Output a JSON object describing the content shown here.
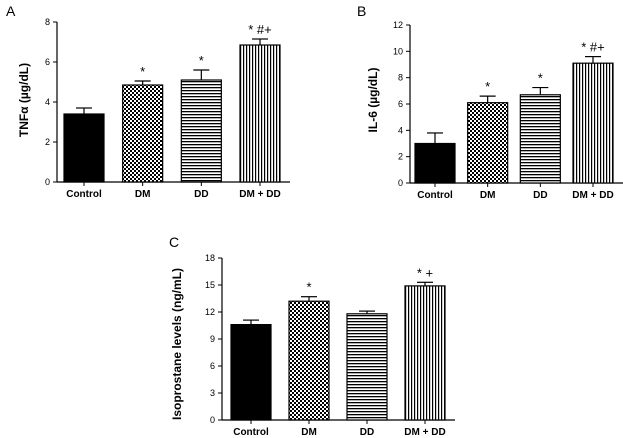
{
  "chart_data": [
    {
      "type": "bar",
      "panel": "A",
      "ylabel": "TNFα  (µg/dL)",
      "categories": [
        "Control",
        "DM",
        "DD",
        "DM + DD"
      ],
      "values": [
        3.4,
        4.85,
        5.1,
        6.85
      ],
      "errors": [
        0.3,
        0.2,
        0.5,
        0.3
      ],
      "annotations": [
        "",
        "*",
        "*",
        "* #+"
      ],
      "ylim": [
        0,
        8
      ],
      "yticks": [
        0,
        2,
        4,
        6,
        8
      ],
      "patterns": [
        "solid",
        "checker",
        "hlines",
        "vlines"
      ]
    },
    {
      "type": "bar",
      "panel": "B",
      "ylabel": "IL-6 (µg/dL)",
      "categories": [
        "Control",
        "DM",
        "DD",
        "DM + DD"
      ],
      "values": [
        3.0,
        6.1,
        6.7,
        9.1
      ],
      "errors": [
        0.8,
        0.5,
        0.55,
        0.5
      ],
      "annotations": [
        "",
        "*",
        "*",
        "* #+"
      ],
      "ylim": [
        0,
        12
      ],
      "yticks": [
        0,
        2,
        4,
        6,
        8,
        10,
        12
      ],
      "patterns": [
        "solid",
        "checker",
        "hlines",
        "vlines"
      ]
    },
    {
      "type": "bar",
      "panel": "C",
      "ylabel": "Isoprostane levels  (ng/mL)",
      "categories": [
        "Control",
        "DM",
        "DD",
        "DM + DD"
      ],
      "values": [
        10.6,
        13.2,
        11.8,
        14.9
      ],
      "errors": [
        0.5,
        0.5,
        0.3,
        0.4
      ],
      "annotations": [
        "",
        "*",
        "",
        "* +"
      ],
      "ylim": [
        0,
        18
      ],
      "yticks": [
        0,
        3,
        6,
        9,
        12,
        15,
        18
      ],
      "patterns": [
        "solid",
        "checker",
        "hlines",
        "vlines"
      ]
    }
  ]
}
